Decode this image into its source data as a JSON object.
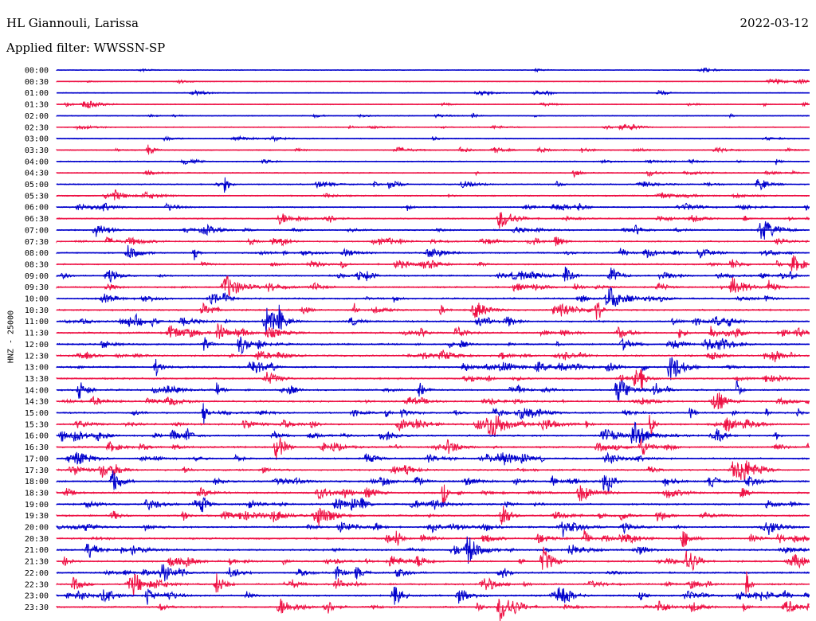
{
  "header": {
    "station": "HL Giannouli, Larissa",
    "date": "2022-03-12",
    "filter": "Applied filter: WWSSN-SP"
  },
  "chart_data": {
    "type": "helicorder",
    "title": "HL Giannouli, Larissa",
    "date": "2022-03-12",
    "filter": "WWSSN-SP",
    "ylabel": "HNZ - 25000",
    "row_labels": [
      "00:00",
      "00:30",
      "01:00",
      "01:30",
      "02:00",
      "02:30",
      "03:00",
      "03:30",
      "04:00",
      "04:30",
      "05:00",
      "05:30",
      "06:00",
      "06:30",
      "07:00",
      "07:30",
      "08:00",
      "08:30",
      "09:00",
      "09:30",
      "10:00",
      "10:30",
      "11:00",
      "11:30",
      "12:00",
      "12:30",
      "13:00",
      "13:30",
      "14:00",
      "14:30",
      "15:00",
      "15:30",
      "16:00",
      "16:30",
      "17:00",
      "17:30",
      "18:00",
      "18:30",
      "19:00",
      "19:30",
      "20:00",
      "20:30",
      "21:00",
      "21:30",
      "22:00",
      "22:30",
      "23:00",
      "23:30"
    ],
    "colors": [
      "#0000cc",
      "#ee1144"
    ],
    "grid": false
  }
}
